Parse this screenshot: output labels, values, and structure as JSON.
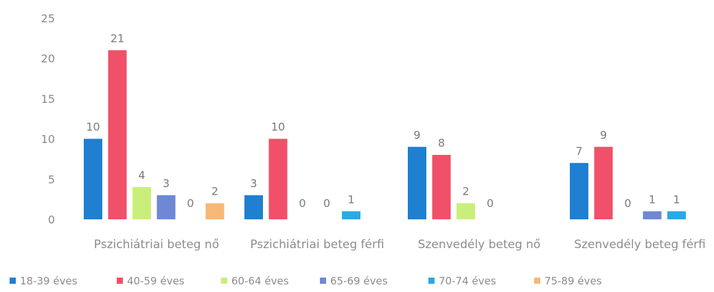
{
  "chart_data": {
    "type": "bar",
    "categories": [
      "Pszichiátriai beteg nő",
      "Pszichiátriai beteg férfi",
      "Szenvedély beteg nő",
      "Szenvedély beteg férfi"
    ],
    "series": [
      {
        "name": "18-39 éves",
        "color": "#1f7fd1",
        "values": [
          10,
          3,
          9,
          7
        ]
      },
      {
        "name": "40-59 éves",
        "color": "#f0506a",
        "values": [
          21,
          10,
          8,
          9
        ]
      },
      {
        "name": "60-64 éves",
        "color": "#c9ef7a",
        "values": [
          4,
          0,
          2,
          0
        ]
      },
      {
        "name": "65-69 éves",
        "color": "#6f88d6",
        "values": [
          3,
          0,
          0,
          1
        ]
      },
      {
        "name": "70-74 éves",
        "color": "#29a9e6",
        "values": [
          0,
          1,
          null,
          1
        ]
      },
      {
        "name": "75-89 éves",
        "color": "#f7b877",
        "values": [
          2,
          null,
          null,
          null
        ]
      }
    ],
    "yticks": [
      "0",
      "5",
      "10",
      "15",
      "20",
      "25"
    ],
    "ylim": [
      0,
      25
    ],
    "grid": false,
    "legend_position": "bottom",
    "title": "",
    "xlabel": "",
    "ylabel": ""
  }
}
